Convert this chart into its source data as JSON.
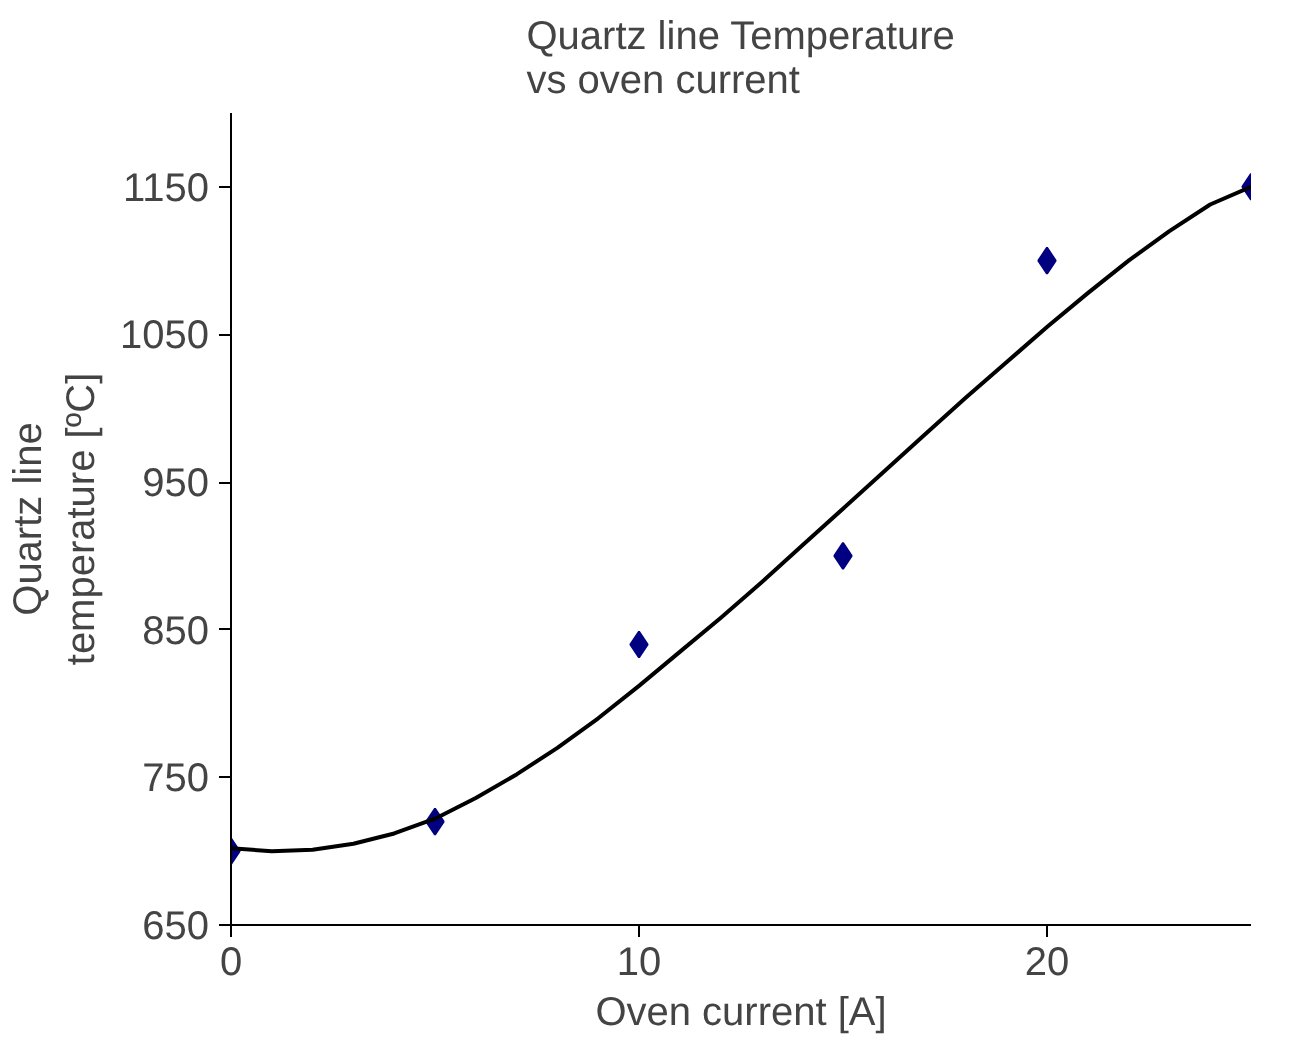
{
  "chart_data": {
    "type": "scatter",
    "title": "Quartz line Temperature\nvs oven current",
    "xlabel": "Oven current [A]",
    "ylabel": "Quartz line\ntemperature [ºC]",
    "x": [
      0,
      5,
      10,
      15,
      20,
      25
    ],
    "series": [
      {
        "color": "#000080",
        "marker": "diamond",
        "values": [
          700,
          720,
          840,
          900,
          1100,
          1150
        ]
      },
      {
        "type": "line",
        "color": "#000000",
        "marker": "none",
        "x": [
          0,
          1,
          2,
          3,
          4,
          5,
          6,
          7,
          8,
          9,
          10,
          11,
          12,
          13,
          14,
          15,
          16,
          17,
          18,
          19,
          20,
          21,
          22,
          23,
          24,
          25
        ],
        "values": [
          702,
          700,
          701,
          705,
          712,
          722,
          736,
          752,
          770,
          790,
          812,
          835,
          858,
          882,
          907,
          932,
          957,
          982,
          1007,
          1031,
          1055,
          1078,
          1100,
          1120,
          1138,
          1150
        ]
      }
    ],
    "xlim": [
      0,
      25
    ],
    "xticks": [
      0,
      10,
      20
    ],
    "ylim": [
      650,
      1200
    ],
    "yticks": [
      650,
      750,
      850,
      950,
      1050,
      1150
    ],
    "grid": false
  }
}
